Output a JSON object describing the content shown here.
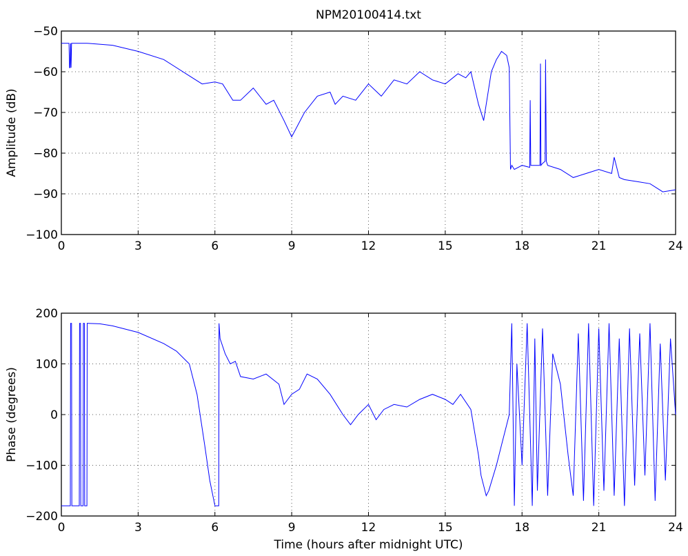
{
  "chart_data": [
    {
      "type": "line",
      "title": "NPM20100414.txt",
      "xlabel": "",
      "ylabel": "Amplitude (dB)",
      "xlim": [
        0,
        24
      ],
      "ylim": [
        -100,
        -50
      ],
      "xticks": [
        0,
        3,
        6,
        9,
        12,
        15,
        18,
        21,
        24
      ],
      "yticks": [
        -100,
        -90,
        -80,
        -70,
        -60,
        -50
      ],
      "xtick_labels": [
        "0",
        "3",
        "6",
        "9",
        "12",
        "15",
        "18",
        "21",
        "24"
      ],
      "ytick_labels": [
        "−100",
        "−90",
        "−80",
        "−70",
        "−60",
        "−50"
      ],
      "grid": true,
      "color": "#0000ff",
      "series": [
        {
          "x": [
            0,
            0.3,
            0.32,
            0.34,
            0.36,
            0.38,
            0.4,
            0.45,
            1,
            2,
            3,
            4,
            5,
            5.5,
            6,
            6.3,
            6.7,
            7,
            7.5,
            8,
            8.3,
            8.7,
            9,
            9.5,
            10,
            10.5,
            10.7,
            11,
            11.5,
            12,
            12.5,
            13,
            13.5,
            14,
            14.5,
            15,
            15.5,
            15.8,
            16,
            16.3,
            16.5,
            16.8,
            17,
            17.2,
            17.4,
            17.5,
            17.55,
            17.6,
            17.7,
            18,
            18.3,
            18.32,
            18.34,
            18.5,
            18.7,
            18.72,
            18.74,
            18.8,
            18.9,
            18.92,
            18.95,
            19,
            19.5,
            20,
            20.5,
            21,
            21.5,
            21.6,
            21.8,
            22,
            22.5,
            23,
            23.5,
            24
          ],
          "y": [
            -53,
            -53,
            -59,
            -59,
            -53,
            -59,
            -53,
            -53,
            -53,
            -53.5,
            -55,
            -57,
            -61,
            -63,
            -62.5,
            -63,
            -67,
            -67,
            -64,
            -68,
            -67,
            -72,
            -76,
            -70,
            -66,
            -65,
            -68,
            -66,
            -67,
            -63,
            -66,
            -62,
            -63,
            -60,
            -62,
            -63,
            -60.5,
            -61.5,
            -60,
            -68,
            -72,
            -60,
            -57,
            -55,
            -56,
            -59,
            -84,
            -83,
            -84,
            -83,
            -83.5,
            -67,
            -83,
            -83,
            -83,
            -58,
            -83,
            -82.5,
            -82,
            -57,
            -82,
            -83,
            -84,
            -86,
            -85,
            -84,
            -85,
            -81,
            -86,
            -86.5,
            -87,
            -87.5,
            -89.5,
            -89
          ]
        }
      ]
    },
    {
      "type": "line",
      "title": "",
      "xlabel": "Time (hours after midnight UTC)",
      "ylabel": "Phase (degrees)",
      "xlim": [
        0,
        24
      ],
      "ylim": [
        -200,
        200
      ],
      "xticks": [
        0,
        3,
        6,
        9,
        12,
        15,
        18,
        21,
        24
      ],
      "yticks": [
        -200,
        -100,
        0,
        100,
        200
      ],
      "xtick_labels": [
        "0",
        "3",
        "6",
        "9",
        "12",
        "15",
        "18",
        "21",
        "24"
      ],
      "ytick_labels": [
        "−200",
        "−100",
        "0",
        "100",
        "200"
      ],
      "grid": true,
      "color": "#0000ff",
      "series": [
        {
          "x": [
            0,
            0.3,
            0.35,
            0.36,
            0.4,
            0.41,
            0.7,
            0.71,
            0.75,
            0.76,
            0.85,
            0.86,
            0.9,
            0.91,
            1,
            1.01,
            1.5,
            2,
            3,
            4,
            4.5,
            5,
            5.3,
            5.6,
            5.8,
            6,
            6.15,
            6.16,
            6.2,
            6.4,
            6.6,
            6.8,
            7,
            7.5,
            8,
            8.5,
            8.7,
            9,
            9.3,
            9.6,
            10,
            10.5,
            11,
            11.3,
            11.6,
            12,
            12.3,
            12.6,
            13,
            13.5,
            14,
            14.5,
            15,
            15.3,
            15.6,
            16,
            16.3,
            16.4,
            16.6,
            16.7,
            17,
            17.2,
            17.4,
            17.5,
            17.6,
            17.7,
            17.8,
            18,
            18.2,
            18.4,
            18.5,
            18.6,
            18.8,
            19,
            19.2,
            19.5,
            19.8,
            20,
            20.2,
            20.4,
            20.6,
            20.8,
            21,
            21.2,
            21.4,
            21.6,
            21.8,
            22,
            22.2,
            22.4,
            22.6,
            22.8,
            23,
            23.2,
            23.4,
            23.6,
            23.8,
            24
          ],
          "y": [
            -180,
            -180,
            -180,
            180,
            180,
            -180,
            -180,
            180,
            180,
            -180,
            -180,
            180,
            180,
            -180,
            -180,
            180,
            179,
            175,
            162,
            140,
            125,
            100,
            40,
            -60,
            -130,
            -180,
            -180,
            180,
            150,
            120,
            100,
            105,
            75,
            70,
            80,
            60,
            20,
            40,
            50,
            80,
            70,
            40,
            0,
            -20,
            0,
            20,
            -10,
            10,
            20,
            15,
            30,
            40,
            30,
            20,
            40,
            10,
            -80,
            -120,
            -160,
            -150,
            -100,
            -60,
            -20,
            0,
            180,
            -180,
            100,
            -100,
            180,
            -180,
            150,
            -150,
            170,
            -160,
            120,
            60,
            -80,
            -160,
            160,
            -170,
            180,
            -180,
            170,
            -150,
            180,
            -160,
            150,
            -180,
            170,
            -140,
            160,
            -120,
            180,
            -170,
            140,
            -130,
            150,
            0
          ]
        }
      ]
    }
  ]
}
